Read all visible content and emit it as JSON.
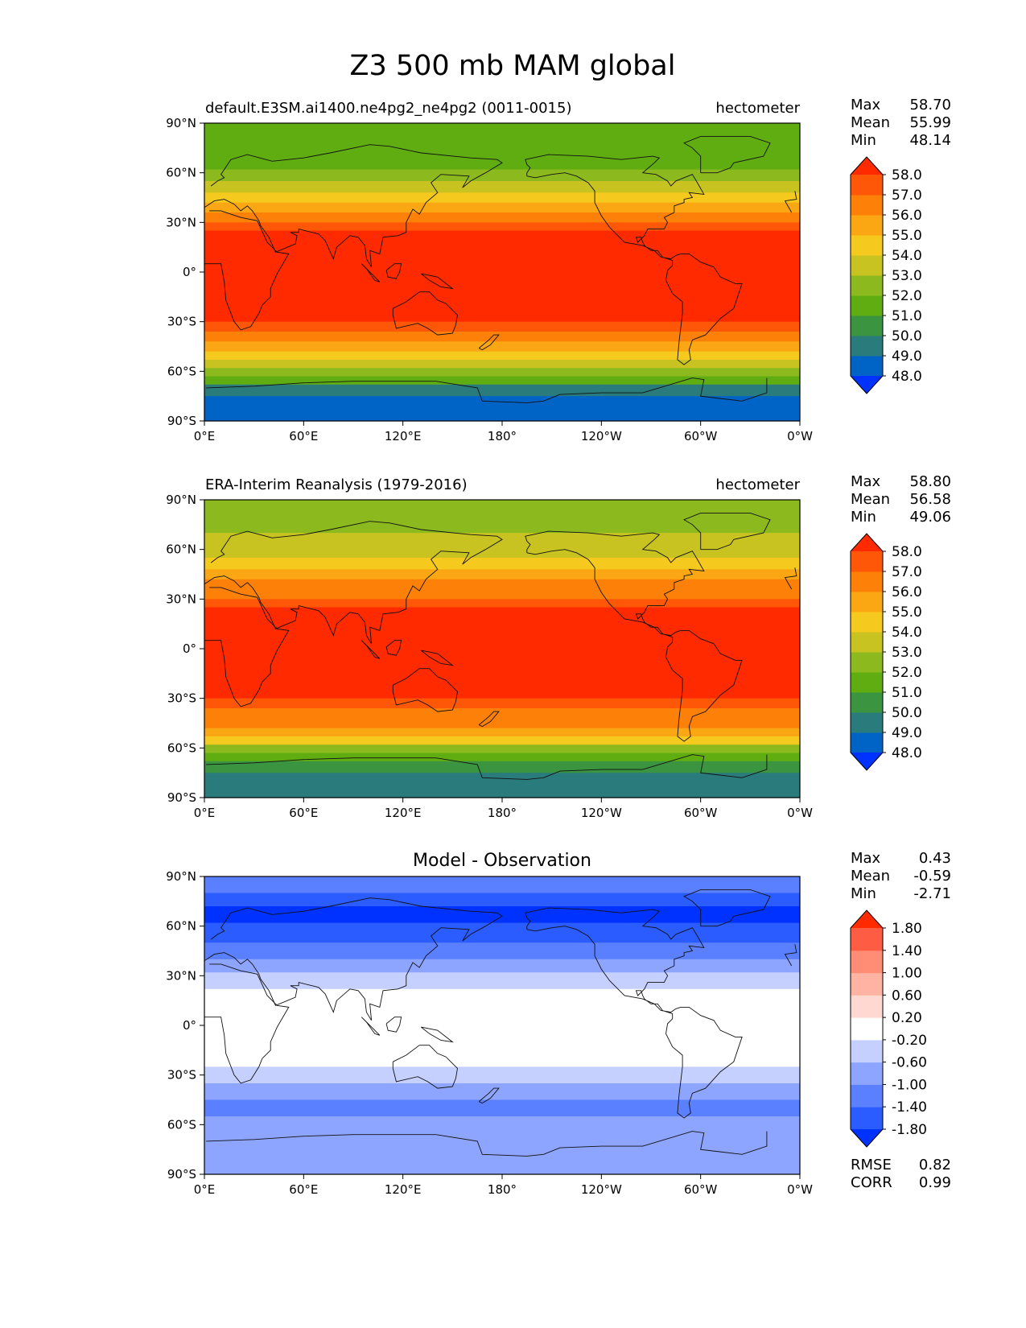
{
  "suptitle": "Z3 500 mb MAM global",
  "colors": {
    "test_levels": [
      "#0032ff",
      "#0063c6",
      "#2a7c7c",
      "#3a9440",
      "#60ad12",
      "#8cba1e",
      "#c8c321",
      "#f5c91d",
      "#fba714",
      "#fd8009",
      "#fe5707",
      "#ff2a00"
    ],
    "diff_levels": [
      "#0032ff",
      "#2a5cff",
      "#5a80ff",
      "#8ea5ff",
      "#c5d0ff",
      "#ffffff",
      "#ffd9d1",
      "#ffb3a3",
      "#ff8c75",
      "#ff5c44",
      "#ff2a00"
    ]
  },
  "chart_data": [
    {
      "type": "heatmap",
      "panel": "test",
      "title_left": "default.E3SM.ai1400.ne4pg2_ne4pg2 (0011-0015)",
      "title_right": "hectometer",
      "x_ticks": [
        "0°E",
        "60°E",
        "120°E",
        "180°",
        "120°W",
        "60°W",
        "0°W"
      ],
      "y_ticks": [
        "90°N",
        "60°N",
        "30°N",
        "0°",
        "30°S",
        "60°S",
        "90°S"
      ],
      "xlim": [
        0,
        360
      ],
      "ylim": [
        -90,
        90
      ],
      "levels": [
        "48.0",
        "49.0",
        "50.0",
        "51.0",
        "52.0",
        "53.0",
        "54.0",
        "55.0",
        "56.0",
        "57.0",
        "58.0"
      ],
      "stats": {
        "labels": [
          "Max",
          "Mean",
          "Min"
        ],
        "values": [
          "58.70",
          "55.99",
          "48.14"
        ]
      },
      "zonal_profile": {
        "lat": [
          90,
          80,
          70,
          62,
          55,
          48,
          42,
          36,
          30,
          25,
          -25,
          -30,
          -36,
          -42,
          -48,
          -53,
          -58,
          -63,
          -68,
          -75,
          -90
        ],
        "value": [
          51.3,
          51.6,
          51.9,
          52.6,
          53.6,
          54.6,
          55.6,
          56.6,
          57.4,
          58.2,
          58.2,
          57.4,
          56.6,
          55.6,
          54.4,
          53.2,
          52.1,
          51.0,
          49.8,
          48.6,
          48.4
        ]
      }
    },
    {
      "type": "heatmap",
      "panel": "reference",
      "title_left": "ERA-Interim Reanalysis (1979-2016)",
      "title_right": "hectometer",
      "x_ticks": [
        "0°E",
        "60°E",
        "120°E",
        "180°",
        "120°W",
        "60°W",
        "0°W"
      ],
      "y_ticks": [
        "90°N",
        "60°N",
        "30°N",
        "0°",
        "30°S",
        "60°S",
        "90°S"
      ],
      "xlim": [
        0,
        360
      ],
      "ylim": [
        -90,
        90
      ],
      "levels": [
        "48.0",
        "49.0",
        "50.0",
        "51.0",
        "52.0",
        "53.0",
        "54.0",
        "55.0",
        "56.0",
        "57.0",
        "58.0"
      ],
      "stats": {
        "labels": [
          "Max",
          "Mean",
          "Min"
        ],
        "values": [
          "58.80",
          "56.58",
          "49.06"
        ]
      },
      "zonal_profile": {
        "lat": [
          90,
          80,
          70,
          62,
          55,
          48,
          42,
          36,
          30,
          25,
          -25,
          -30,
          -36,
          -42,
          -48,
          -53,
          -58,
          -63,
          -68,
          -75,
          -90
        ],
        "value": [
          52.6,
          52.9,
          53.2,
          53.8,
          54.6,
          55.4,
          56.2,
          56.9,
          57.5,
          58.2,
          58.2,
          57.5,
          56.8,
          56.0,
          55.0,
          54.0,
          52.9,
          51.8,
          50.6,
          49.5,
          49.4
        ]
      }
    },
    {
      "type": "heatmap",
      "panel": "difference",
      "title_center": "Model - Observation",
      "x_ticks": [
        "0°E",
        "60°E",
        "120°E",
        "180°",
        "120°W",
        "60°W",
        "0°W"
      ],
      "y_ticks": [
        "90°N",
        "60°N",
        "30°N",
        "0°",
        "30°S",
        "60°S",
        "90°S"
      ],
      "xlim": [
        0,
        360
      ],
      "ylim": [
        -90,
        90
      ],
      "levels": [
        "-1.80",
        "-1.40",
        "-1.00",
        "-0.60",
        "-0.20",
        "0.20",
        "0.60",
        "1.00",
        "1.40",
        "1.80"
      ],
      "stats": {
        "labels": [
          "Max",
          "Mean",
          "Min"
        ],
        "values": [
          "0.43",
          "-0.59",
          "-2.71"
        ]
      },
      "metrics": {
        "labels": [
          "RMSE",
          "CORR"
        ],
        "values": [
          "0.82",
          "0.99"
        ]
      },
      "zonal_profile": {
        "lat": [
          90,
          80,
          72,
          62,
          50,
          40,
          32,
          22,
          10,
          -5,
          -15,
          -25,
          -35,
          -45,
          -55,
          -65,
          -75,
          -90
        ],
        "value": [
          -1.2,
          -1.5,
          -1.9,
          -1.6,
          -1.1,
          -0.7,
          -0.4,
          -0.1,
          0.0,
          0.0,
          -0.2,
          -0.5,
          -0.9,
          -1.2,
          -0.9,
          -0.8,
          -1.0,
          -1.0
        ]
      }
    }
  ]
}
